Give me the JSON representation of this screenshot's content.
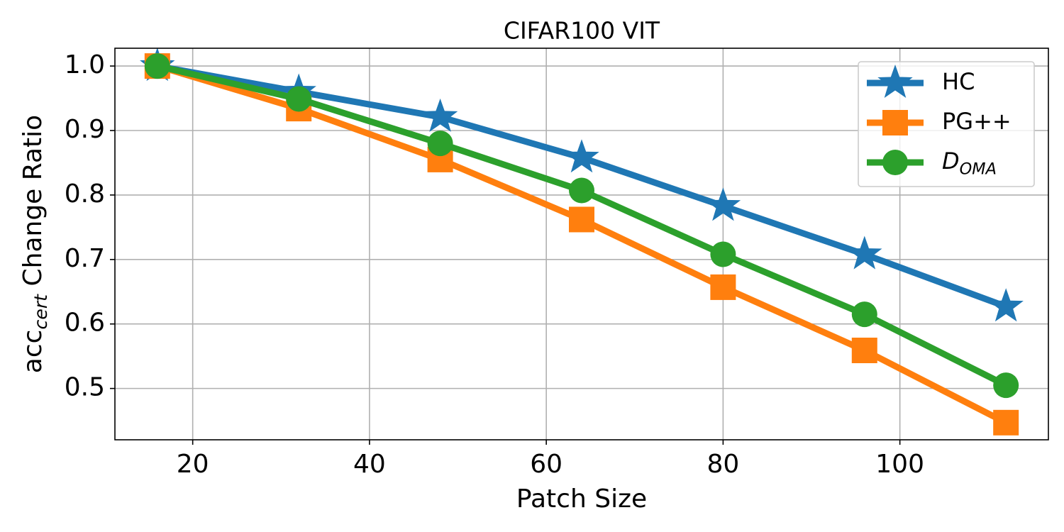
{
  "chart_data": {
    "type": "line",
    "title": "CIFAR100 VIT",
    "xlabel": "Patch Size",
    "ylabel": [
      {
        "text": "acc"
      },
      {
        "text": "cert",
        "style": "subscript"
      },
      {
        "text": " Change Ratio"
      }
    ],
    "x": [
      16,
      32,
      48,
      64,
      80,
      96,
      112
    ],
    "series": [
      {
        "name": "HC",
        "color": "#1f77b4",
        "marker": "star",
        "values": [
          1.0,
          0.96,
          0.921,
          0.858,
          0.783,
          0.708,
          0.627
        ]
      },
      {
        "name": "PG++",
        "color": "#ff7f0e",
        "marker": "square",
        "values": [
          1.0,
          0.934,
          0.855,
          0.762,
          0.657,
          0.559,
          0.447
        ]
      },
      {
        "name": [
          {
            "text": "D"
          },
          {
            "text": "OMA",
            "style": "subscript"
          }
        ],
        "color": "#2ca02c",
        "marker": "circle",
        "values": [
          1.0,
          0.949,
          0.88,
          0.807,
          0.708,
          0.615,
          0.505
        ]
      }
    ],
    "xlim": [
      11.2,
      116.8
    ],
    "ylim": [
      0.4204,
      1.0276
    ],
    "xticks": [
      20,
      40,
      60,
      80,
      100
    ],
    "yticks": [
      0.5,
      0.6,
      0.7,
      0.8,
      0.9,
      {
        "value": 1.0,
        "label": "1.0"
      }
    ],
    "grid": true,
    "legend": "upper right"
  }
}
